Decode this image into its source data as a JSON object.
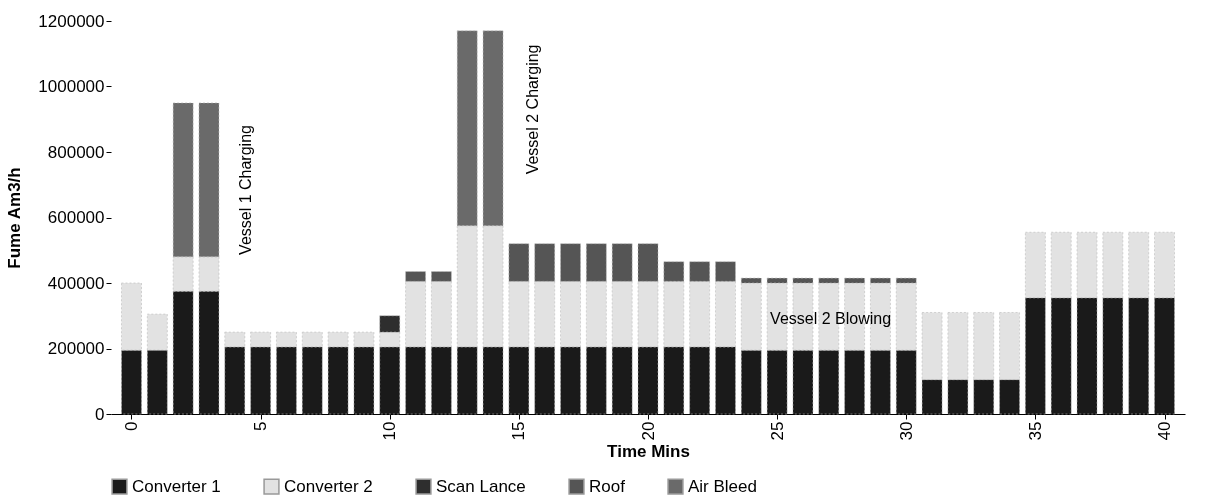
{
  "chart_data": {
    "type": "bar",
    "stacked": true,
    "xlabel": "Time Mins",
    "ylabel": "Fume Am3/h",
    "x": [
      0,
      1,
      2,
      3,
      4,
      5,
      6,
      7,
      8,
      9,
      10,
      11,
      12,
      13,
      14,
      15,
      16,
      17,
      18,
      19,
      20,
      21,
      22,
      23,
      24,
      25,
      26,
      27,
      28,
      29,
      30,
      31,
      32,
      33,
      34,
      35,
      36,
      37,
      38,
      39,
      40
    ],
    "series": [
      {
        "name": "Converter 1",
        "color": "#1a1a1a",
        "values": [
          195000,
          195000,
          375000,
          375000,
          205000,
          205000,
          205000,
          205000,
          205000,
          205000,
          205000,
          205000,
          205000,
          205000,
          205000,
          205000,
          205000,
          205000,
          205000,
          205000,
          205000,
          205000,
          205000,
          205000,
          195000,
          195000,
          195000,
          195000,
          195000,
          195000,
          195000,
          105000,
          105000,
          105000,
          105000,
          355000,
          355000,
          355000,
          355000,
          355000,
          355000
        ]
      },
      {
        "name": "Converter 2",
        "color": "#e2e2e2",
        "values": [
          205000,
          110000,
          105000,
          105000,
          45000,
          45000,
          45000,
          45000,
          45000,
          45000,
          45000,
          200000,
          200000,
          370000,
          370000,
          200000,
          200000,
          200000,
          200000,
          200000,
          200000,
          200000,
          200000,
          200000,
          205000,
          205000,
          205000,
          205000,
          205000,
          205000,
          205000,
          205000,
          205000,
          205000,
          205000,
          200000,
          200000,
          200000,
          200000,
          200000,
          200000
        ]
      },
      {
        "name": "Scan Lance",
        "color": "#2e2e2e",
        "values": [
          null,
          null,
          null,
          null,
          null,
          null,
          null,
          null,
          null,
          null,
          50000,
          null,
          null,
          null,
          null,
          null,
          null,
          null,
          null,
          null,
          null,
          null,
          null,
          null,
          null,
          null,
          null,
          null,
          null,
          null,
          null,
          null,
          null,
          null,
          null,
          null,
          null,
          null,
          null,
          null,
          null
        ]
      },
      {
        "name": "Roof",
        "color": "#555555",
        "values": [
          null,
          null,
          null,
          null,
          null,
          null,
          null,
          null,
          null,
          null,
          null,
          30000,
          30000,
          null,
          null,
          115000,
          115000,
          115000,
          115000,
          115000,
          115000,
          60000,
          60000,
          60000,
          15000,
          15000,
          15000,
          15000,
          15000,
          15000,
          15000,
          null,
          null,
          null,
          null,
          null,
          null,
          null,
          null,
          null,
          null
        ]
      },
      {
        "name": "Air Bleed",
        "color": "#6a6a6a",
        "values": [
          null,
          null,
          470000,
          470000,
          null,
          null,
          null,
          null,
          null,
          null,
          null,
          null,
          null,
          595000,
          595000,
          null,
          null,
          null,
          null,
          null,
          null,
          null,
          null,
          null,
          null,
          null,
          null,
          null,
          null,
          null,
          null,
          null,
          null,
          null,
          null,
          null,
          null,
          null,
          null,
          null,
          null
        ]
      }
    ],
    "xlim": [
      -0.6,
      40.6
    ],
    "xticks": [
      0,
      5,
      10,
      15,
      20,
      25,
      30,
      35,
      40
    ],
    "ylim": [
      0,
      1200000
    ],
    "yticks": [
      0,
      200000,
      400000,
      600000,
      800000,
      1000000,
      1200000
    ],
    "grid": false,
    "legend": "bottom",
    "annotations": [
      "Vessel 1 Charging",
      "Vessel 2 Charging",
      "Vessel 2 Blowing"
    ]
  }
}
